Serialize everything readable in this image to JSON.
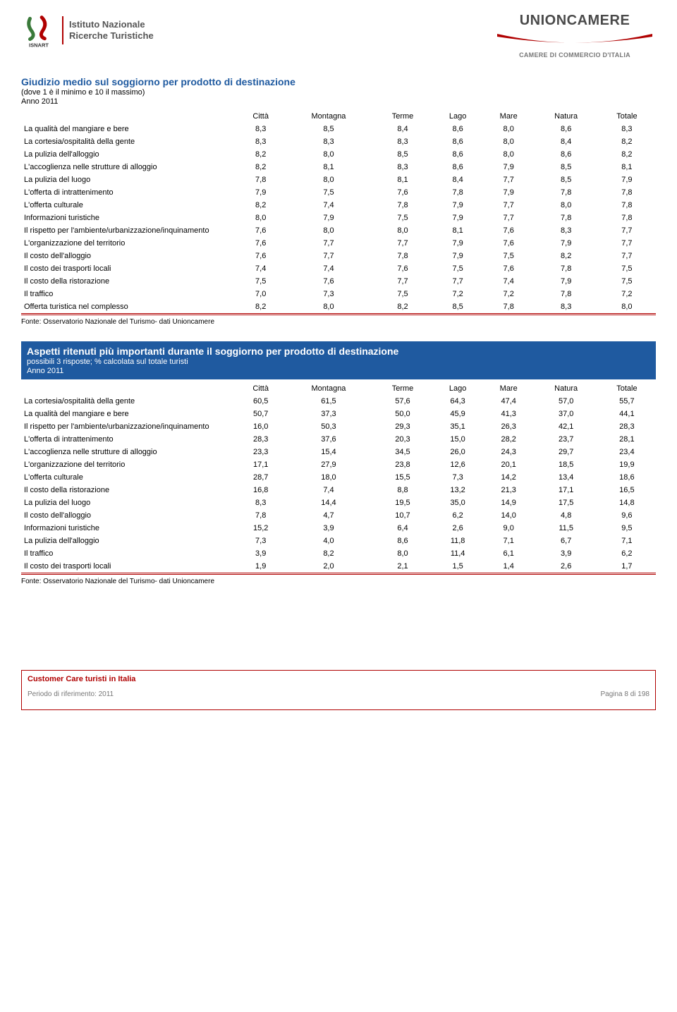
{
  "logos": {
    "left_line1": "Istituto Nazionale",
    "left_line2": "Ricerche Turistiche",
    "left_caption": "ISNART",
    "right_title": "UNIONCAMERE",
    "right_sub": "CAMERE DI COMMERCIO D'ITALIA",
    "swoosh_color": "#b00000"
  },
  "table1": {
    "title": "Giudizio medio sul soggiorno per prodotto di destinazione",
    "subtitle": "(dove 1 è il minimo e 10 il massimo)",
    "year": "Anno 2011",
    "title_color": "#1f5aa0",
    "columns": [
      "Città",
      "Montagna",
      "Terme",
      "Lago",
      "Mare",
      "Natura",
      "Totale"
    ],
    "rows": [
      {
        "label": "La qualità del mangiare e bere",
        "vals": [
          "8,3",
          "8,5",
          "8,4",
          "8,6",
          "8,0",
          "8,6",
          "8,3"
        ]
      },
      {
        "label": "La cortesia/ospitalità della gente",
        "vals": [
          "8,3",
          "8,3",
          "8,3",
          "8,6",
          "8,0",
          "8,4",
          "8,2"
        ]
      },
      {
        "label": "La pulizia dell'alloggio",
        "vals": [
          "8,2",
          "8,0",
          "8,5",
          "8,6",
          "8,0",
          "8,6",
          "8,2"
        ]
      },
      {
        "label": "L'accoglienza nelle strutture di alloggio",
        "vals": [
          "8,2",
          "8,1",
          "8,3",
          "8,6",
          "7,9",
          "8,5",
          "8,1"
        ]
      },
      {
        "label": "La pulizia del luogo",
        "vals": [
          "7,8",
          "8,0",
          "8,1",
          "8,4",
          "7,7",
          "8,5",
          "7,9"
        ]
      },
      {
        "label": "L'offerta di intrattenimento",
        "vals": [
          "7,9",
          "7,5",
          "7,6",
          "7,8",
          "7,9",
          "7,8",
          "7,8"
        ]
      },
      {
        "label": "L'offerta culturale",
        "vals": [
          "8,2",
          "7,4",
          "7,8",
          "7,9",
          "7,7",
          "8,0",
          "7,8"
        ]
      },
      {
        "label": "Informazioni turistiche",
        "vals": [
          "8,0",
          "7,9",
          "7,5",
          "7,9",
          "7,7",
          "7,8",
          "7,8"
        ]
      },
      {
        "label": "Il rispetto per l'ambiente/urbanizzazione/inquinamento",
        "vals": [
          "7,6",
          "8,0",
          "8,0",
          "8,1",
          "7,6",
          "8,3",
          "7,7"
        ]
      },
      {
        "label": "L'organizzazione del territorio",
        "vals": [
          "7,6",
          "7,7",
          "7,7",
          "7,9",
          "7,6",
          "7,9",
          "7,7"
        ]
      },
      {
        "label": "Il costo dell'alloggio",
        "vals": [
          "7,6",
          "7,7",
          "7,8",
          "7,9",
          "7,5",
          "8,2",
          "7,7"
        ]
      },
      {
        "label": "Il costo dei trasporti locali",
        "vals": [
          "7,4",
          "7,4",
          "7,6",
          "7,5",
          "7,6",
          "7,8",
          "7,5"
        ]
      },
      {
        "label": "Il costo della ristorazione",
        "vals": [
          "7,5",
          "7,6",
          "7,7",
          "7,7",
          "7,4",
          "7,9",
          "7,5"
        ]
      },
      {
        "label": "Il traffico",
        "vals": [
          "7,0",
          "7,3",
          "7,5",
          "7,2",
          "7,2",
          "7,8",
          "7,2"
        ]
      },
      {
        "label": "Offerta turistica nel complesso",
        "vals": [
          "8,2",
          "8,0",
          "8,2",
          "8,5",
          "7,8",
          "8,3",
          "8,0"
        ]
      }
    ],
    "border_color": "#b00000",
    "source": "Fonte: Osservatorio Nazionale del Turismo- dati Unioncamere"
  },
  "table2": {
    "title": "Aspetti ritenuti più importanti durante il soggiorno per prodotto di destinazione",
    "subtitle": "possibili 3 risposte; % calcolata sul totale turisti",
    "year": "Anno 2011",
    "block_bg": "#1f5aa0",
    "columns": [
      "Città",
      "Montagna",
      "Terme",
      "Lago",
      "Mare",
      "Natura",
      "Totale"
    ],
    "rows": [
      {
        "label": "La cortesia/ospitalità della gente",
        "vals": [
          "60,5",
          "61,5",
          "57,6",
          "64,3",
          "47,4",
          "57,0",
          "55,7"
        ]
      },
      {
        "label": "La qualità del mangiare e bere",
        "vals": [
          "50,7",
          "37,3",
          "50,0",
          "45,9",
          "41,3",
          "37,0",
          "44,1"
        ]
      },
      {
        "label": "Il rispetto per l'ambiente/urbanizzazione/inquinamento",
        "vals": [
          "16,0",
          "50,3",
          "29,3",
          "35,1",
          "26,3",
          "42,1",
          "28,3"
        ]
      },
      {
        "label": "L'offerta di intrattenimento",
        "vals": [
          "28,3",
          "37,6",
          "20,3",
          "15,0",
          "28,2",
          "23,7",
          "28,1"
        ]
      },
      {
        "label": "L'accoglienza nelle strutture di alloggio",
        "vals": [
          "23,3",
          "15,4",
          "34,5",
          "26,0",
          "24,3",
          "29,7",
          "23,4"
        ]
      },
      {
        "label": "L'organizzazione del territorio",
        "vals": [
          "17,1",
          "27,9",
          "23,8",
          "12,6",
          "20,1",
          "18,5",
          "19,9"
        ]
      },
      {
        "label": "L'offerta culturale",
        "vals": [
          "28,7",
          "18,0",
          "15,5",
          "7,3",
          "14,2",
          "13,4",
          "18,6"
        ]
      },
      {
        "label": "Il costo della ristorazione",
        "vals": [
          "16,8",
          "7,4",
          "8,8",
          "13,2",
          "21,3",
          "17,1",
          "16,5"
        ]
      },
      {
        "label": "La pulizia del luogo",
        "vals": [
          "8,3",
          "14,4",
          "19,5",
          "35,0",
          "14,9",
          "17,5",
          "14,8"
        ]
      },
      {
        "label": "Il costo dell'alloggio",
        "vals": [
          "7,8",
          "4,7",
          "10,7",
          "6,2",
          "14,0",
          "4,8",
          "9,6"
        ]
      },
      {
        "label": "Informazioni turistiche",
        "vals": [
          "15,2",
          "3,9",
          "6,4",
          "2,6",
          "9,0",
          "11,5",
          "9,5"
        ]
      },
      {
        "label": "La pulizia dell'alloggio",
        "vals": [
          "7,3",
          "4,0",
          "8,6",
          "11,8",
          "7,1",
          "6,7",
          "7,1"
        ]
      },
      {
        "label": "Il traffico",
        "vals": [
          "3,9",
          "8,2",
          "8,0",
          "11,4",
          "6,1",
          "3,9",
          "6,2"
        ]
      },
      {
        "label": "Il costo dei trasporti locali",
        "vals": [
          "1,9",
          "2,0",
          "2,1",
          "1,5",
          "1,4",
          "2,6",
          "1,7"
        ]
      }
    ],
    "source": "Fonte: Osservatorio Nazionale del Turismo- dati Unioncamere"
  },
  "footer": {
    "title": "Customer Care turisti in Italia",
    "left": "Periodo di riferimento: 2011",
    "right": "Pagina 8 di 198",
    "border_color": "#b00000",
    "title_color": "#b00000"
  }
}
